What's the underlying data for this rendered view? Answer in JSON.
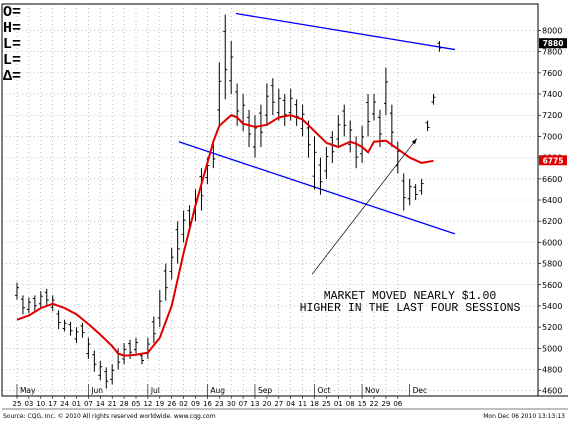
{
  "ohlc_labels": [
    "O=",
    "H=",
    "L=",
    "L=",
    "Δ="
  ],
  "chart_data": {
    "type": "ohlc-bar",
    "title": "",
    "xlabel": "",
    "ylabel": "",
    "ylim": [
      4550,
      8250
    ],
    "y_ticks": [
      4600,
      4800,
      5000,
      5200,
      5400,
      5600,
      5800,
      6000,
      6200,
      6400,
      6600,
      6800,
      7000,
      7200,
      7400,
      7600,
      7800,
      8000
    ],
    "y_tick_labels": [
      "4600",
      "4800",
      "5000",
      "5200",
      "5400",
      "5600",
      "5800",
      "6000",
      "6200",
      "6400",
      "6600",
      "6800",
      "7000",
      "7200",
      "7400",
      "7600",
      "7800",
      "8000"
    ],
    "x_tick_labels": [
      "25",
      "03",
      "10",
      "17",
      "24",
      "01",
      "07",
      "14",
      "21",
      "28",
      "05",
      "12",
      "19",
      "26",
      "02",
      "09",
      "16",
      "23",
      "30",
      "07",
      "13",
      "20",
      "27",
      "04",
      "11",
      "18",
      "25",
      "01",
      "08",
      "15",
      "22",
      "29",
      "06"
    ],
    "month_labels": [
      {
        "label": "May",
        "index": 1
      },
      {
        "label": "Jun",
        "index": 7
      },
      {
        "label": "Jul",
        "index": 12
      },
      {
        "label": "Aug",
        "index": 17
      },
      {
        "label": "Sep",
        "index": 21
      },
      {
        "label": "Oct",
        "index": 26
      },
      {
        "label": "Nov",
        "index": 30
      },
      {
        "label": "Dec",
        "index": 34
      }
    ],
    "grid": true,
    "last_price_tag": {
      "label": "7880",
      "value": 7880,
      "color": "#000000"
    },
    "ma_tag": {
      "label": "6775",
      "value": 6775,
      "color": "#e00000"
    },
    "price_bars": {
      "color": "#000000",
      "values": [
        [
          0,
          5460,
          5620
        ],
        [
          0.5,
          5320,
          5500
        ],
        [
          1,
          5330,
          5480
        ],
        [
          1.5,
          5350,
          5500
        ],
        [
          2,
          5380,
          5540
        ],
        [
          2.5,
          5400,
          5560
        ],
        [
          3,
          5350,
          5500
        ],
        [
          3.5,
          5180,
          5360
        ],
        [
          4,
          5160,
          5270
        ],
        [
          4.5,
          5120,
          5250
        ],
        [
          5,
          5050,
          5200
        ],
        [
          5.5,
          5100,
          5240
        ],
        [
          6,
          4900,
          5100
        ],
        [
          6.5,
          4780,
          4980
        ],
        [
          7,
          4700,
          4880
        ],
        [
          7.5,
          4620,
          4820
        ],
        [
          8,
          4660,
          4850
        ],
        [
          8.5,
          4800,
          5000
        ],
        [
          9,
          4850,
          5050
        ],
        [
          9.5,
          4900,
          5080
        ],
        [
          10,
          4950,
          5100
        ],
        [
          10.5,
          4850,
          4950
        ],
        [
          11,
          4900,
          5100
        ],
        [
          11.5,
          5050,
          5300
        ],
        [
          12,
          5200,
          5550
        ],
        [
          12.5,
          5450,
          5800
        ],
        [
          13,
          5650,
          5950
        ],
        [
          13.5,
          5800,
          6200
        ],
        [
          14,
          6000,
          6300
        ],
        [
          14.5,
          6100,
          6350
        ],
        [
          15,
          6200,
          6500
        ],
        [
          15.5,
          6300,
          6700
        ],
        [
          16,
          6550,
          6800
        ],
        [
          16.5,
          6700,
          6950
        ],
        [
          17,
          7100,
          7700
        ],
        [
          17.5,
          7350,
          8150
        ],
        [
          18,
          7400,
          7900
        ],
        [
          18.5,
          7100,
          7500
        ],
        [
          19,
          7050,
          7400
        ],
        [
          19.5,
          6900,
          7250
        ],
        [
          20,
          6800,
          7200
        ],
        [
          20.5,
          6900,
          7300
        ],
        [
          21,
          7100,
          7500
        ],
        [
          21.5,
          7200,
          7550
        ],
        [
          22,
          7150,
          7450
        ],
        [
          22.5,
          7100,
          7400
        ],
        [
          23,
          7150,
          7450
        ],
        [
          23.5,
          7100,
          7350
        ],
        [
          24,
          7000,
          7300
        ],
        [
          24.5,
          6800,
          7150
        ],
        [
          25,
          6500,
          7000
        ],
        [
          25.5,
          6450,
          6800
        ],
        [
          26,
          6600,
          6900
        ],
        [
          26.5,
          6750,
          7050
        ],
        [
          27,
          6900,
          7200
        ],
        [
          27.5,
          7000,
          7300
        ],
        [
          28,
          6850,
          7150
        ],
        [
          28.5,
          6700,
          7000
        ],
        [
          29,
          6750,
          7100
        ],
        [
          29.5,
          7000,
          7400
        ],
        [
          30,
          7150,
          7400
        ],
        [
          30.5,
          6900,
          7250
        ],
        [
          31,
          7200,
          7650
        ],
        [
          31.5,
          6900,
          7300
        ],
        [
          32,
          6650,
          6950
        ],
        [
          32.5,
          6300,
          6650
        ],
        [
          33,
          6350,
          6600
        ],
        [
          33.5,
          6400,
          6550
        ],
        [
          34,
          6450,
          6600
        ],
        [
          34.5,
          7050,
          7150
        ],
        [
          35,
          7300,
          7400
        ],
        [
          35.5,
          7800,
          7900
        ]
      ]
    },
    "moving_average": {
      "color": "#e00000",
      "values": [
        [
          0,
          5270
        ],
        [
          1,
          5310
        ],
        [
          2,
          5380
        ],
        [
          3,
          5420
        ],
        [
          4,
          5380
        ],
        [
          5,
          5320
        ],
        [
          6,
          5230
        ],
        [
          7,
          5130
        ],
        [
          8,
          5020
        ],
        [
          8.5,
          4950
        ],
        [
          9,
          4930
        ],
        [
          10,
          4940
        ],
        [
          11,
          4960
        ],
        [
          12,
          5100
        ],
        [
          13,
          5400
        ],
        [
          14,
          5900
        ],
        [
          15,
          6350
        ],
        [
          16,
          6750
        ],
        [
          16.5,
          6950
        ],
        [
          17,
          7100
        ],
        [
          18,
          7200
        ],
        [
          18.5,
          7180
        ],
        [
          19,
          7120
        ],
        [
          20,
          7090
        ],
        [
          21,
          7110
        ],
        [
          22,
          7180
        ],
        [
          23,
          7200
        ],
        [
          24,
          7160
        ],
        [
          25,
          7050
        ],
        [
          26,
          6940
        ],
        [
          27,
          6900
        ],
        [
          28,
          6950
        ],
        [
          28.5,
          6930
        ],
        [
          29,
          6900
        ],
        [
          29.5,
          6850
        ],
        [
          30,
          6950
        ],
        [
          31,
          6960
        ],
        [
          32,
          6880
        ],
        [
          33,
          6800
        ],
        [
          34,
          6750
        ],
        [
          35,
          6770
        ]
      ]
    },
    "trend_lines": {
      "color": "#0000ff",
      "lines": [
        {
          "name": "upper-channel",
          "from": [
            18.4,
            8160
          ],
          "to": [
            36.8,
            7820
          ]
        },
        {
          "name": "lower-channel",
          "from": [
            13.6,
            6950
          ],
          "to": [
            36.8,
            6080
          ]
        }
      ]
    },
    "annotation": {
      "lines": [
        "MARKET MOVED NEARLY $1.00",
        "HIGHER IN THE LAST FOUR SESSIONS"
      ],
      "arrow_from": [
        24.8,
        5700
      ],
      "arrow_to": [
        33.6,
        6980
      ]
    }
  },
  "footer": {
    "left": "Source: CQG, Inc. © 2010 All rights reserved worldwide. www.cqg.com",
    "right": "Mon Dec 06 2010 13:13:13"
  }
}
